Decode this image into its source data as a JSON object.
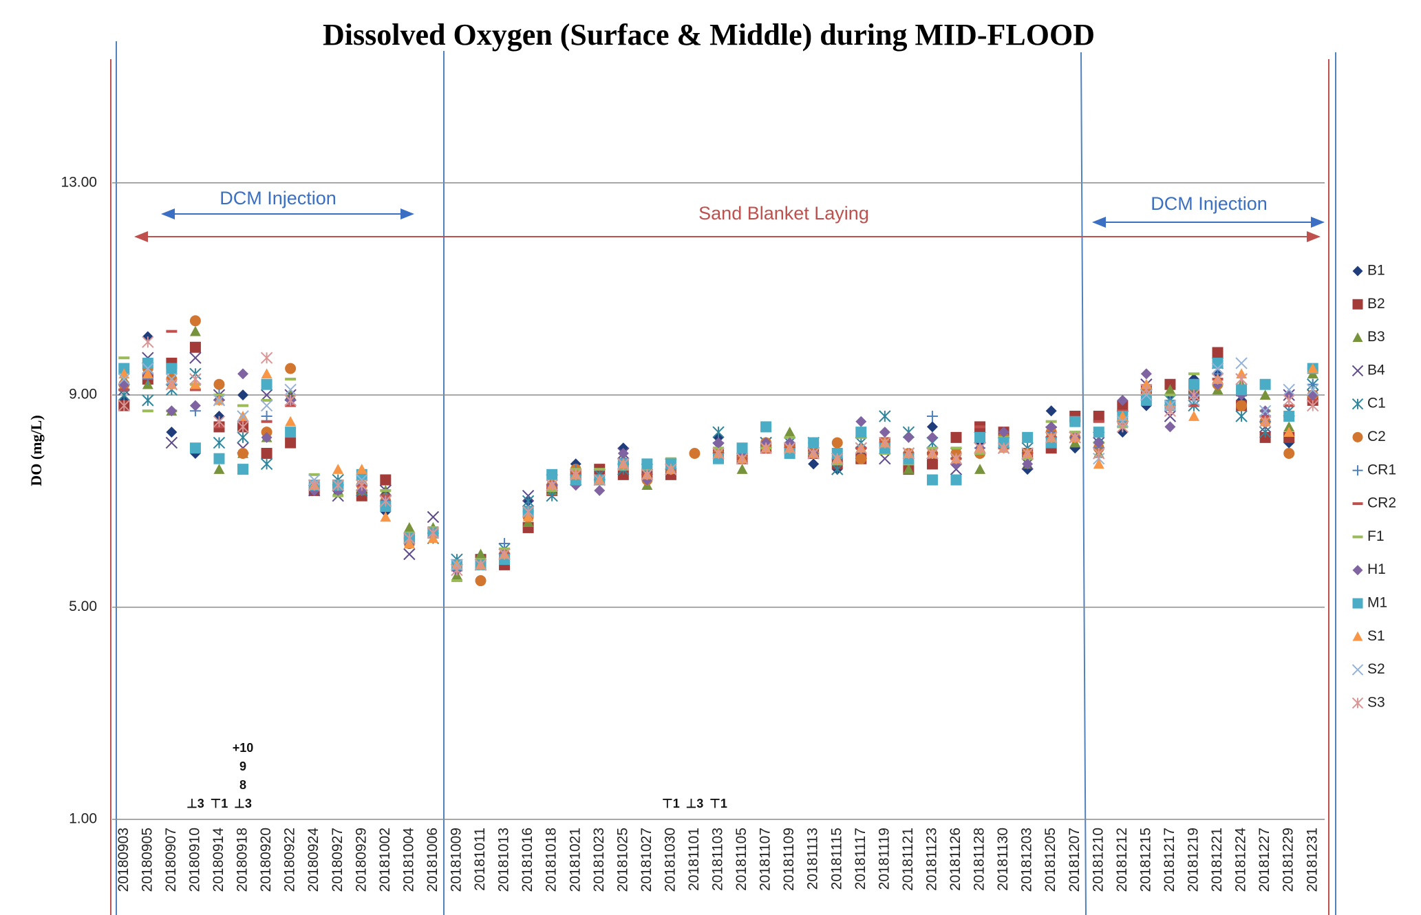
{
  "chart_data": {
    "type": "scatter",
    "title": "Dissolved Oxygen (Surface & Middle) during MID-FLOOD",
    "y_label": "DO (mg/L)",
    "ylim": [
      1,
      15.5
    ],
    "yticks": [
      {
        "value": 1,
        "label": "1.00"
      },
      {
        "value": 5,
        "label": "5.00"
      },
      {
        "value": 9,
        "label": "9.00"
      },
      {
        "value": 13,
        "label": "13.00"
      }
    ],
    "grid": true,
    "legend": "right",
    "annotations": [
      "DCM Injection",
      "Sand Blanket Laying",
      "DCM Injection"
    ],
    "weather_marks": [
      {
        "date": "20180910",
        "text": "⊥3"
      },
      {
        "date": "20180914",
        "text": "⊤1"
      },
      {
        "date": "20180918",
        "text": "⊥3"
      },
      {
        "date": "20180918",
        "text": "8"
      },
      {
        "date": "20180918",
        "text": "9"
      },
      {
        "date": "20180918",
        "text": "+10"
      },
      {
        "date": "20181030",
        "text": "⊤1"
      },
      {
        "date": "20181101",
        "text": "⊥3"
      },
      {
        "date": "20181103",
        "text": "⊤1"
      }
    ],
    "categories": [
      "20180903",
      "20180905",
      "20180907",
      "20180910",
      "20180914",
      "20180918",
      "20180920",
      "20180922",
      "20180924",
      "20180927",
      "20180929",
      "20181002",
      "20181004",
      "20181006",
      "20181009",
      "20181011",
      "20181013",
      "20181016",
      "20181018",
      "20181021",
      "20181023",
      "20181025",
      "20181027",
      "20181030",
      "20181101",
      "20181103",
      "20181105",
      "20181107",
      "20181109",
      "20181113",
      "20181115",
      "20181117",
      "20181119",
      "20181121",
      "20181123",
      "20181126",
      "20181128",
      "20181130",
      "20181203",
      "20181205",
      "20181207",
      "20181210",
      "20181212",
      "20181215",
      "20181217",
      "20181219",
      "20181221",
      "20181224",
      "20181227",
      "20181229",
      "20181231"
    ],
    "series": [
      {
        "name": "B1",
        "marker": "diamond",
        "color": "#1f3d7a",
        "values": [
          8.9,
          10.1,
          8.3,
          7.9,
          8.6,
          9.0,
          8.3,
          8.9,
          7.2,
          7.2,
          7.2,
          6.8,
          6.2,
          6.4,
          5.7,
          5.9,
          5.9,
          7.0,
          7.3,
          7.7,
          7.4,
          8.0,
          7.5,
          7.6,
          null,
          8.2,
          8.0,
          8.0,
          7.9,
          7.7,
          7.6,
          7.9,
          8.0,
          7.8,
          8.4,
          7.9,
          8.1,
          8.0,
          7.6,
          8.7,
          8.0,
          8.0,
          8.3,
          8.8,
          9.0,
          9.3,
          9.4,
          8.9,
          8.2,
          8.1,
          9.0
        ]
      },
      {
        "name": "B2",
        "marker": "square",
        "color": "#a33b39",
        "values": [
          8.8,
          9.3,
          9.6,
          9.9,
          8.4,
          8.4,
          7.9,
          8.1,
          7.2,
          7.3,
          7.1,
          7.4,
          6.3,
          6.4,
          5.8,
          5.9,
          5.8,
          6.5,
          7.2,
          7.5,
          7.6,
          7.5,
          7.5,
          7.5,
          null,
          7.9,
          7.8,
          8.0,
          8.0,
          7.9,
          7.7,
          7.8,
          8.1,
          7.6,
          7.7,
          8.2,
          8.4,
          8.3,
          7.9,
          8.0,
          8.6,
          8.6,
          8.8,
          9.1,
          9.2,
          9.0,
          9.8,
          8.8,
          8.2,
          8.2,
          8.9
        ]
      },
      {
        "name": "B3",
        "marker": "triangle",
        "color": "#77933c",
        "values": [
          9.3,
          9.2,
          8.7,
          10.2,
          7.6,
          7.9,
          8.2,
          9.0,
          7.3,
          7.2,
          7.2,
          7.2,
          6.5,
          6.5,
          5.6,
          6.0,
          5.9,
          6.6,
          7.2,
          7.6,
          7.4,
          7.8,
          7.3,
          7.7,
          null,
          8.0,
          7.6,
          8.1,
          8.3,
          8.0,
          7.8,
          8.0,
          8.0,
          7.6,
          7.9,
          7.8,
          7.6,
          8.2,
          7.7,
          8.3,
          8.1,
          7.9,
          8.5,
          9.0,
          9.1,
          9.1,
          9.1,
          9.2,
          9.0,
          8.4,
          9.4
        ]
      },
      {
        "name": "B4",
        "marker": "x",
        "color": "#5f4b8b",
        "values": [
          9.1,
          9.7,
          8.1,
          9.7,
          9.0,
          8.0,
          9.0,
          9.0,
          7.2,
          7.1,
          7.3,
          7.2,
          6.0,
          6.7,
          5.8,
          5.8,
          6.0,
          7.1,
          7.4,
          7.5,
          7.4,
          7.9,
          7.5,
          7.6,
          null,
          8.0,
          7.8,
          8.1,
          8.0,
          7.9,
          7.8,
          7.9,
          7.8,
          7.9,
          7.9,
          7.6,
          8.2,
          8.1,
          7.7,
          8.3,
          8.2,
          8.1,
          8.6,
          9.2,
          8.6,
          8.9,
          9.5,
          9.3,
          8.4,
          9.0,
          9.0
        ]
      },
      {
        "name": "C1",
        "marker": "asterisk",
        "color": "#31859c",
        "values": [
          9.0,
          8.9,
          9.1,
          9.4,
          8.1,
          8.2,
          7.7,
          8.9,
          7.3,
          7.4,
          7.2,
          7.0,
          6.3,
          6.3,
          5.9,
          5.8,
          6.1,
          7.0,
          7.1,
          7.4,
          7.5,
          7.6,
          7.6,
          7.7,
          null,
          8.3,
          7.8,
          8.1,
          8.1,
          8.1,
          7.6,
          8.1,
          8.6,
          8.3,
          8.1,
          7.9,
          8.0,
          8.1,
          8.0,
          8.2,
          8.2,
          8.2,
          8.6,
          9.0,
          8.9,
          8.8,
          9.6,
          8.6,
          8.3,
          8.7,
          9.2
        ]
      },
      {
        "name": "C2",
        "marker": "circle",
        "color": "#d2762f",
        "values": [
          9.2,
          9.5,
          9.3,
          10.4,
          9.2,
          7.9,
          8.3,
          9.5,
          7.3,
          7.3,
          7.3,
          7.0,
          6.2,
          6.4,
          5.8,
          5.5,
          6.0,
          6.7,
          7.3,
          7.6,
          7.4,
          7.7,
          7.4,
          7.6,
          7.9,
          7.9,
          7.8,
          8.1,
          8.0,
          7.9,
          8.1,
          7.8,
          8.1,
          7.9,
          7.9,
          7.9,
          7.9,
          8.2,
          7.9,
          8.3,
          8.2,
          8.0,
          8.5,
          9.1,
          8.8,
          9.2,
          9.2,
          8.8,
          8.5,
          7.9,
          9.0
        ]
      },
      {
        "name": "CR1",
        "marker": "plus",
        "color": "#4f81bd",
        "values": [
          9.2,
          9.3,
          9.2,
          8.7,
          9.0,
          8.5,
          8.6,
          8.9,
          7.3,
          7.3,
          7.3,
          7.1,
          6.3,
          6.4,
          5.8,
          5.8,
          6.2,
          6.9,
          7.3,
          7.6,
          7.4,
          7.8,
          7.5,
          7.7,
          null,
          8.1,
          7.9,
          8.1,
          8.1,
          8.1,
          7.8,
          8.0,
          8.1,
          7.9,
          8.6,
          7.8,
          8.0,
          8.1,
          7.9,
          8.3,
          8.2,
          8.0,
          8.4,
          9.0,
          8.9,
          9.0,
          9.4,
          9.0,
          8.5,
          8.8,
          9.2
        ]
      },
      {
        "name": "CR2",
        "marker": "dash",
        "color": "#c0504d",
        "values": [
          9.1,
          9.4,
          10.2,
          9.1,
          8.4,
          8.5,
          8.5,
          8.8,
          7.3,
          7.3,
          7.3,
          7.1,
          6.3,
          6.4,
          5.7,
          5.8,
          6.0,
          6.8,
          7.3,
          7.5,
          7.4,
          7.7,
          7.5,
          7.6,
          null,
          7.9,
          7.8,
          8.0,
          8.0,
          7.9,
          7.8,
          8.0,
          8.1,
          7.9,
          7.9,
          7.8,
          8.4,
          8.0,
          7.9,
          8.2,
          8.5,
          8.5,
          8.7,
          9.0,
          8.8,
          8.8,
          9.3,
          9.0,
          8.6,
          8.8,
          8.9
        ]
      },
      {
        "name": "F1",
        "marker": "dash",
        "color": "#9bbb59",
        "values": [
          9.7,
          8.7,
          8.7,
          9.2,
          9.0,
          8.8,
          8.9,
          9.3,
          7.5,
          7.1,
          7.2,
          7.2,
          6.4,
          6.5,
          5.5,
          5.9,
          6.1,
          6.8,
          7.2,
          7.6,
          7.6,
          7.6,
          7.6,
          7.8,
          null,
          8.0,
          7.9,
          8.0,
          8.2,
          7.9,
          7.7,
          8.2,
          7.9,
          7.7,
          8.0,
          8.0,
          7.9,
          8.2,
          7.8,
          8.5,
          8.3,
          8.1,
          8.4,
          9.0,
          9.0,
          9.4,
          9.2,
          9.1,
          8.7,
          8.6,
          9.5
        ]
      },
      {
        "name": "H1",
        "marker": "diamond",
        "color": "#8064a2",
        "values": [
          9.2,
          9.4,
          8.7,
          8.8,
          8.9,
          9.4,
          8.2,
          8.9,
          7.2,
          7.2,
          7.2,
          7.0,
          6.2,
          6.4,
          5.7,
          5.8,
          6.0,
          6.8,
          7.3,
          7.3,
          7.2,
          7.9,
          7.4,
          7.6,
          null,
          8.1,
          7.9,
          8.1,
          8.1,
          7.9,
          7.8,
          8.5,
          8.3,
          8.2,
          8.2,
          7.7,
          8.0,
          8.3,
          7.7,
          8.4,
          8.2,
          8.1,
          8.9,
          9.4,
          8.4,
          9.0,
          9.2,
          9.0,
          8.7,
          9.0,
          9.0
        ]
      },
      {
        "name": "M1",
        "marker": "square",
        "color": "#4bacc6",
        "values": [
          9.5,
          9.6,
          9.5,
          8.0,
          7.8,
          7.6,
          9.2,
          8.3,
          7.3,
          7.3,
          7.5,
          6.9,
          6.3,
          6.4,
          5.8,
          5.8,
          5.9,
          6.8,
          7.5,
          7.4,
          7.4,
          7.7,
          7.7,
          7.7,
          null,
          7.8,
          8.0,
          8.4,
          7.9,
          8.1,
          7.9,
          8.3,
          8.0,
          7.8,
          7.4,
          7.4,
          8.2,
          8.1,
          8.2,
          8.1,
          8.5,
          8.3,
          8.6,
          8.9,
          8.8,
          9.2,
          9.6,
          9.1,
          9.2,
          8.6,
          9.5
        ]
      },
      {
        "name": "S1",
        "marker": "triangle",
        "color": "#f79646",
        "values": [
          9.4,
          9.4,
          9.2,
          9.2,
          8.9,
          8.6,
          9.4,
          8.5,
          7.3,
          7.6,
          7.6,
          6.7,
          6.2,
          6.3,
          5.8,
          5.8,
          6.0,
          6.7,
          7.3,
          7.5,
          7.4,
          7.7,
          7.5,
          7.6,
          null,
          7.9,
          7.8,
          8.0,
          8.0,
          7.9,
          7.8,
          8.0,
          8.1,
          7.9,
          7.9,
          7.8,
          8.0,
          8.0,
          7.9,
          8.2,
          8.2,
          7.7,
          8.6,
          9.2,
          8.8,
          8.6,
          9.3,
          9.4,
          8.5,
          8.3,
          9.5
        ]
      },
      {
        "name": "S2",
        "marker": "x",
        "color": "#95b3d7",
        "values": [
          9.3,
          9.5,
          9.3,
          9.3,
          8.9,
          8.6,
          8.8,
          9.1,
          7.4,
          7.3,
          7.4,
          7.0,
          6.3,
          6.4,
          5.8,
          5.8,
          6.0,
          6.8,
          7.3,
          7.5,
          7.4,
          7.7,
          7.5,
          7.6,
          null,
          7.9,
          7.8,
          8.0,
          8.0,
          7.9,
          7.8,
          8.0,
          8.1,
          7.9,
          7.9,
          7.8,
          8.0,
          8.0,
          7.9,
          8.2,
          8.2,
          7.8,
          8.5,
          9.0,
          8.8,
          8.9,
          9.5,
          9.6,
          8.7,
          9.1,
          9.1
        ]
      },
      {
        "name": "S3",
        "marker": "asterisk",
        "color": "#d99694",
        "values": [
          8.8,
          10.0,
          9.2,
          9.3,
          8.5,
          8.4,
          9.7,
          8.9,
          7.3,
          7.3,
          7.3,
          7.0,
          6.3,
          6.4,
          5.7,
          5.8,
          6.0,
          6.8,
          7.3,
          7.5,
          7.4,
          7.7,
          7.5,
          7.6,
          null,
          7.9,
          7.8,
          8.0,
          8.0,
          7.9,
          7.8,
          8.0,
          8.1,
          7.9,
          7.9,
          7.8,
          8.0,
          8.0,
          7.9,
          8.2,
          8.2,
          7.9,
          8.4,
          9.1,
          8.7,
          9.0,
          9.3,
          9.3,
          8.5,
          8.9,
          8.8
        ]
      }
    ]
  }
}
